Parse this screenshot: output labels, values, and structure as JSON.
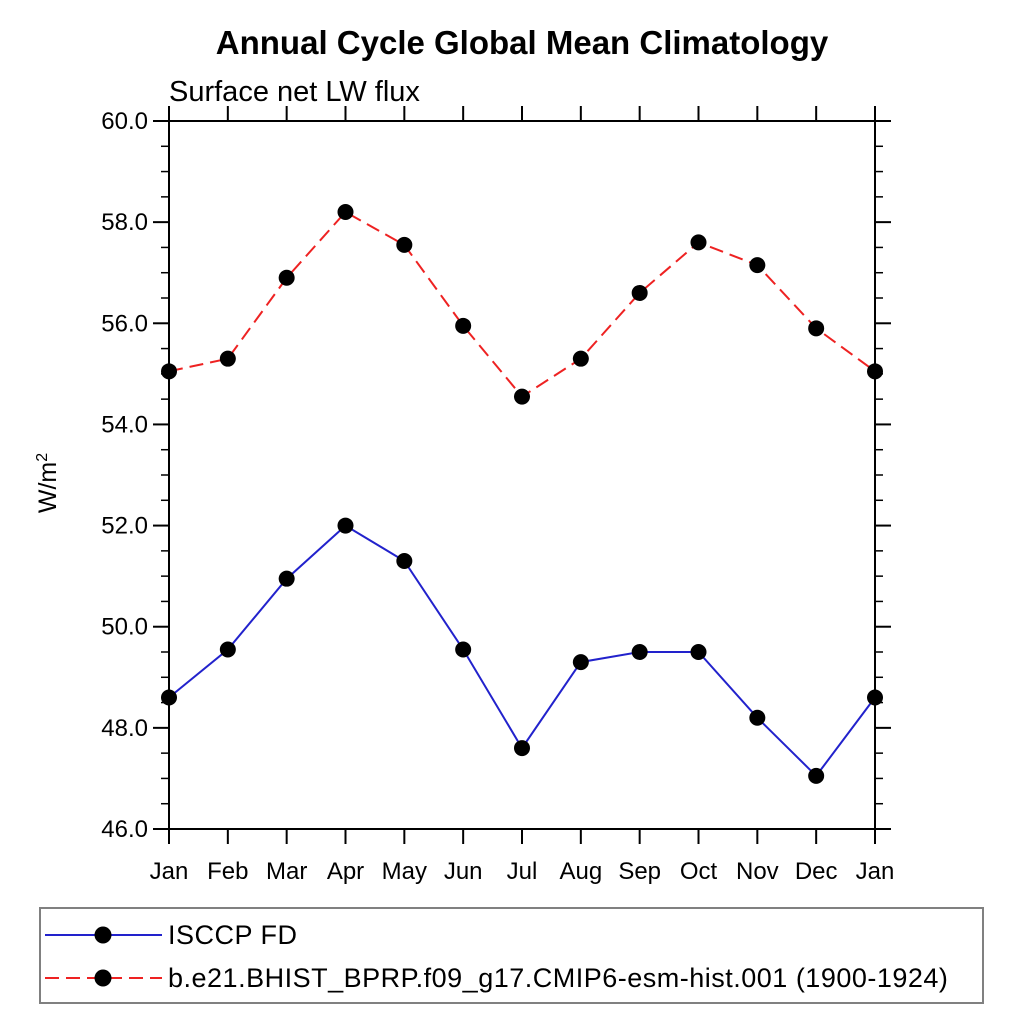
{
  "title": "Annual Cycle Global Mean Climatology",
  "subtitle": "Surface net LW flux",
  "y_axis": {
    "label": "W/m",
    "label_sup": "2",
    "min": 46.0,
    "max": 60.0,
    "major_step": 2.0,
    "minor_step": 0.5,
    "tick_labels": [
      "46.0",
      "48.0",
      "50.0",
      "52.0",
      "54.0",
      "56.0",
      "58.0",
      "60.0"
    ]
  },
  "x_axis": {
    "tick_labels": [
      "Jan",
      "Feb",
      "Mar",
      "Apr",
      "May",
      "Jun",
      "Jul",
      "Aug",
      "Sep",
      "Oct",
      "Nov",
      "Dec",
      "Jan"
    ]
  },
  "colors": {
    "series1": "#2222cc",
    "series2": "#ee2222",
    "marker": "#000000",
    "axis": "#000000",
    "legend_border": "#808080"
  },
  "chart_data": {
    "type": "line",
    "title": "Annual Cycle Global Mean Climatology",
    "subtitle": "Surface net LW flux",
    "xlabel": "",
    "ylabel": "W/m²",
    "ylim": [
      46.0,
      60.0
    ],
    "ytick_major": 2.0,
    "ytick_minor": 0.5,
    "grid": false,
    "legend_position": "bottom-left-box",
    "categories": [
      "Jan",
      "Feb",
      "Mar",
      "Apr",
      "May",
      "Jun",
      "Jul",
      "Aug",
      "Sep",
      "Oct",
      "Nov",
      "Dec",
      "Jan"
    ],
    "series": [
      {
        "name": "ISCCP FD",
        "color": "#2222cc",
        "line_style": "solid",
        "marker": "filled-circle",
        "marker_color": "#000000",
        "values": [
          48.6,
          49.55,
          50.95,
          52.0,
          51.3,
          49.55,
          47.6,
          49.3,
          49.5,
          49.5,
          48.2,
          47.05,
          48.6
        ]
      },
      {
        "name": "b.e21.BHIST_BPRP.f09_g17.CMIP6-esm-hist.001 (1900-1924)",
        "color": "#ee2222",
        "line_style": "dashed",
        "marker": "filled-circle",
        "marker_color": "#000000",
        "values": [
          55.05,
          55.3,
          56.9,
          58.2,
          57.55,
          55.95,
          54.55,
          55.3,
          56.6,
          57.6,
          57.15,
          55.9,
          55.05
        ]
      }
    ]
  }
}
